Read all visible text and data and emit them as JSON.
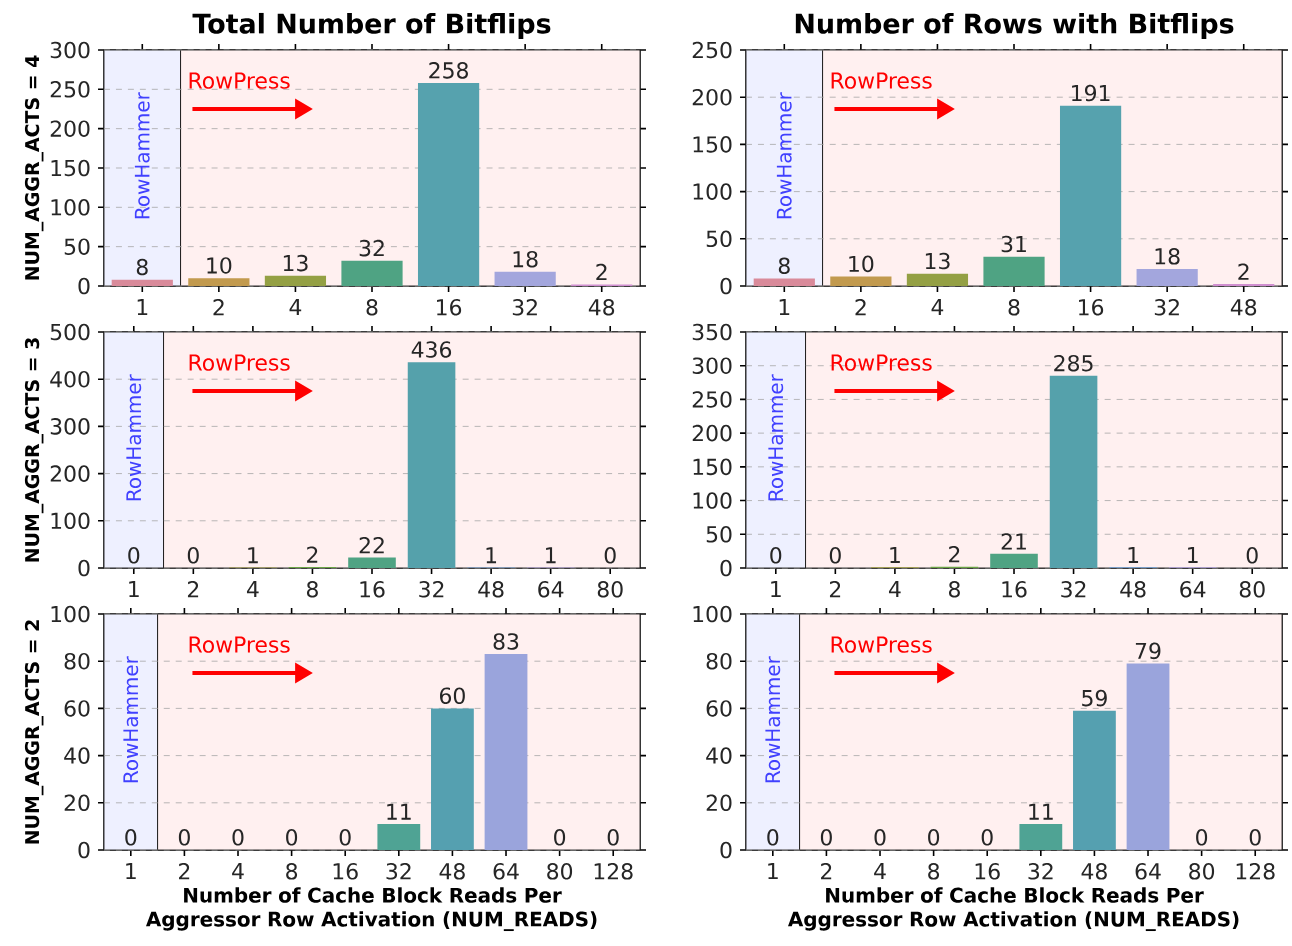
{
  "chart_data": [
    {
      "type": "bar",
      "title": "Total Number of Bitflips",
      "ylabel": "NUM_AGGR_ACTS = 4",
      "categories": [
        "1",
        "2",
        "4",
        "8",
        "16",
        "32",
        "48"
      ],
      "values": [
        8,
        10,
        13,
        32,
        258,
        18,
        2
      ],
      "colors": [
        "#d98a9a",
        "#c29a4e",
        "#94a044",
        "#4fa383",
        "#56a2ae",
        "#a3a6dd",
        "#d08fd0"
      ],
      "data_labels": true,
      "ylim": [
        0,
        300
      ],
      "yticks": [
        0,
        50,
        100,
        150,
        200,
        250,
        300
      ],
      "grid": "y",
      "annotations": [
        "RowHammer",
        "RowPress"
      ]
    },
    {
      "type": "bar",
      "title": "Number of Rows with Bitflips",
      "categories": [
        "1",
        "2",
        "4",
        "8",
        "16",
        "32",
        "48"
      ],
      "values": [
        8,
        10,
        13,
        31,
        191,
        18,
        2
      ],
      "colors": [
        "#d98a9a",
        "#c29a4e",
        "#94a044",
        "#4fa383",
        "#56a2ae",
        "#a3a6dd",
        "#d08fd0"
      ],
      "data_labels": true,
      "ylim": [
        0,
        250
      ],
      "yticks": [
        0,
        50,
        100,
        150,
        200,
        250
      ],
      "grid": "y",
      "annotations": [
        "RowHammer",
        "RowPress"
      ]
    },
    {
      "type": "bar",
      "ylabel": "NUM_AGGR_ACTS = 3",
      "categories": [
        "1",
        "2",
        "4",
        "8",
        "16",
        "32",
        "48",
        "64",
        "80"
      ],
      "values": [
        0,
        0,
        1,
        2,
        22,
        436,
        1,
        1,
        0
      ],
      "colors": [
        "#d98a9a",
        "#c79648",
        "#a3a040",
        "#6aa445",
        "#4fa383",
        "#55a1ab",
        "#6ea0d8",
        "#b0a0dd",
        "#d890c8"
      ],
      "data_labels": true,
      "ylim": [
        0,
        500
      ],
      "yticks": [
        0,
        100,
        200,
        300,
        400,
        500
      ],
      "grid": "y",
      "annotations": [
        "RowHammer",
        "RowPress"
      ]
    },
    {
      "type": "bar",
      "categories": [
        "1",
        "2",
        "4",
        "8",
        "16",
        "32",
        "48",
        "64",
        "80"
      ],
      "values": [
        0,
        0,
        1,
        2,
        21,
        285,
        1,
        1,
        0
      ],
      "colors": [
        "#d98a9a",
        "#c79648",
        "#a3a040",
        "#6aa445",
        "#4fa383",
        "#55a1ab",
        "#6ea0d8",
        "#b0a0dd",
        "#d890c8"
      ],
      "data_labels": true,
      "ylim": [
        0,
        350
      ],
      "yticks": [
        0,
        50,
        100,
        150,
        200,
        250,
        300,
        350
      ],
      "grid": "y",
      "annotations": [
        "RowHammer",
        "RowPress"
      ]
    },
    {
      "type": "bar",
      "ylabel": "NUM_AGGR_ACTS = 2",
      "xlabel": "Number of Cache Block Reads Per Aggressor Row Activation (NUM_READS)",
      "categories": [
        "1",
        "2",
        "4",
        "8",
        "16",
        "32",
        "48",
        "64",
        "80",
        "128"
      ],
      "values": [
        0,
        0,
        0,
        0,
        0,
        11,
        60,
        83,
        0,
        0
      ],
      "colors": [
        "#d98a9a",
        "#c99646",
        "#a8a040",
        "#76a444",
        "#4fa378",
        "#4fa394",
        "#55a0b0",
        "#9aa4dc",
        "#c39ad8",
        "#d890c0"
      ],
      "data_labels": true,
      "ylim": [
        0,
        100
      ],
      "yticks": [
        0,
        20,
        40,
        60,
        80,
        100
      ],
      "grid": "y",
      "annotations": [
        "RowHammer",
        "RowPress"
      ]
    },
    {
      "type": "bar",
      "xlabel": "Number of Cache Block Reads Per Aggressor Row Activation (NUM_READS)",
      "categories": [
        "1",
        "2",
        "4",
        "8",
        "16",
        "32",
        "48",
        "64",
        "80",
        "128"
      ],
      "values": [
        0,
        0,
        0,
        0,
        0,
        11,
        59,
        79,
        0,
        0
      ],
      "colors": [
        "#d98a9a",
        "#c99646",
        "#a8a040",
        "#76a444",
        "#4fa378",
        "#4fa394",
        "#55a0b0",
        "#9aa4dc",
        "#c39ad8",
        "#d890c0"
      ],
      "data_labels": true,
      "ylim": [
        0,
        100
      ],
      "yticks": [
        0,
        20,
        40,
        60,
        80,
        100
      ],
      "grid": "y",
      "annotations": [
        "RowHammer",
        "RowPress"
      ]
    }
  ]
}
